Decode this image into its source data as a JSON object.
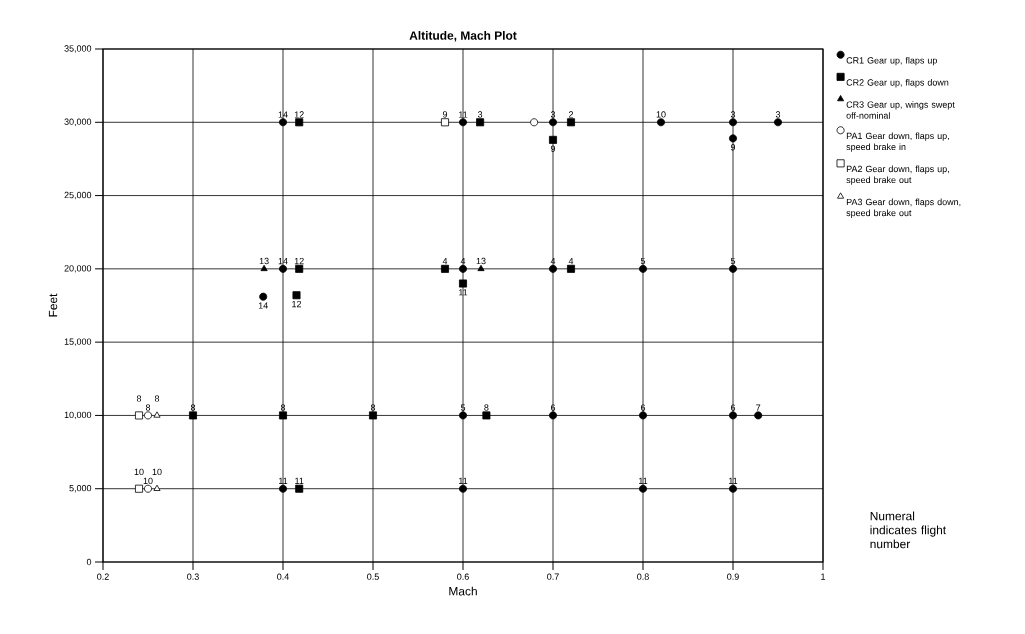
{
  "chart_data": {
    "type": "scatter",
    "title": "Altitude, Mach Plot",
    "xlabel": "Mach",
    "ylabel": "Feet",
    "xlim": [
      0.2,
      1
    ],
    "ylim": [
      0,
      35000
    ],
    "xticks": [
      0.2,
      0.3,
      0.4,
      0.5,
      0.6,
      0.7,
      0.8,
      0.9,
      1
    ],
    "yticks": [
      0,
      {
        "value": 5000,
        "label": "5,000"
      },
      {
        "value": 10000,
        "label": "10,000"
      },
      {
        "value": 15000,
        "label": "15,000"
      },
      {
        "value": 20000,
        "label": "20,000"
      },
      {
        "value": 25000,
        "label": "25,000"
      },
      {
        "value": 30000,
        "label": "30,000"
      },
      {
        "value": 35000,
        "label": "35,000"
      }
    ],
    "grid": true,
    "legend": "right",
    "annotations": [
      "Numeral indicates flight number",
      {
        "text": "14",
        "x": 0.4,
        "y": 30000
      },
      {
        "text": "11",
        "x": 0.6,
        "y": 30000
      },
      {
        "text": "3",
        "x": 0.7,
        "y": 30000
      },
      {
        "text": "10",
        "x": 0.82,
        "y": 30000
      },
      {
        "text": "3",
        "x": 0.9,
        "y": 30000
      },
      {
        "text": "3",
        "x": 0.95,
        "y": 30000
      },
      {
        "text": "9",
        "x": 0.9,
        "y": 28900
      },
      {
        "text": "14",
        "x": 0.4,
        "y": 20000
      },
      {
        "text": "4",
        "x": 0.6,
        "y": 20000
      },
      {
        "text": "4",
        "x": 0.7,
        "y": 20000
      },
      {
        "text": "5",
        "x": 0.8,
        "y": 20000
      },
      {
        "text": "5",
        "x": 0.9,
        "y": 20000
      },
      {
        "text": "14",
        "x": 0.378,
        "y": 18100
      },
      {
        "text": "5",
        "x": 0.6,
        "y": 10000
      },
      {
        "text": "6",
        "x": 0.7,
        "y": 10000
      },
      {
        "text": "6",
        "x": 0.8,
        "y": 10000
      },
      {
        "text": "6",
        "x": 0.9,
        "y": 10000
      },
      {
        "text": "7",
        "x": 0.928,
        "y": 10000
      },
      {
        "text": "11",
        "x": 0.4,
        "y": 5000
      },
      {
        "text": "11",
        "x": 0.6,
        "y": 5000
      },
      {
        "text": "11",
        "x": 0.8,
        "y": 5000
      },
      {
        "text": "11",
        "x": 0.9,
        "y": 5000
      },
      {
        "text": "12",
        "x": 0.418,
        "y": 30000
      },
      {
        "text": "3",
        "x": 0.619,
        "y": 30000
      },
      {
        "text": "2",
        "x": 0.72,
        "y": 30000
      },
      {
        "text": "9",
        "x": 0.7,
        "y": 28800
      },
      {
        "text": "12",
        "x": 0.418,
        "y": 20000
      },
      {
        "text": "4",
        "x": 0.58,
        "y": 20000
      },
      {
        "text": "4",
        "x": 0.72,
        "y": 20000
      },
      {
        "text": "12",
        "x": 0.415,
        "y": 18200
      },
      {
        "text": "11",
        "x": 0.6,
        "y": 19000
      },
      {
        "text": "8",
        "x": 0.3,
        "y": 10000
      },
      {
        "text": "8",
        "x": 0.4,
        "y": 10000
      },
      {
        "text": "8",
        "x": 0.5,
        "y": 10000
      },
      {
        "text": "8",
        "x": 0.626,
        "y": 10000
      },
      {
        "text": "11",
        "x": 0.418,
        "y": 5000
      },
      {
        "text": "13",
        "x": 0.379,
        "y": 20000
      },
      {
        "text": "13",
        "x": 0.62,
        "y": 20000
      },
      {
        "text": "8",
        "x": 0.25,
        "y": 10000
      },
      {
        "text": "10",
        "x": 0.25,
        "y": 5000
      },
      {
        "text": "9",
        "x": 0.58,
        "y": 30000
      },
      {
        "text": "8",
        "x": 0.24,
        "y": 10000
      },
      {
        "text": "10",
        "x": 0.24,
        "y": 5000
      },
      {
        "text": "8",
        "x": 0.26,
        "y": 10000
      },
      {
        "text": "10",
        "x": 0.26,
        "y": 5000
      }
    ],
    "series": [
      {
        "name": "CR1 Gear up, flaps up",
        "color": "#000000",
        "marker": "circle",
        "x": [
          0.4,
          0.6,
          0.7,
          0.82,
          0.9,
          0.95,
          0.9,
          0.4,
          0.6,
          0.7,
          0.8,
          0.9,
          0.378,
          0.6,
          0.7,
          0.8,
          0.9,
          0.928,
          0.4,
          0.6,
          0.8,
          0.9
        ],
        "values": [
          30000,
          30000,
          30000,
          30000,
          30000,
          30000,
          28900,
          20000,
          20000,
          20000,
          20000,
          20000,
          18100,
          10000,
          10000,
          10000,
          10000,
          10000,
          5000,
          5000,
          5000,
          5000
        ]
      },
      {
        "name": "CR2 Gear up, flaps down",
        "color": "#000000",
        "marker": "square",
        "x": [
          0.418,
          0.619,
          0.72,
          0.7,
          0.418,
          0.58,
          0.72,
          0.415,
          0.6,
          0.3,
          0.4,
          0.5,
          0.626,
          0.418
        ],
        "values": [
          30000,
          30000,
          30000,
          28800,
          20000,
          20000,
          20000,
          18200,
          19000,
          10000,
          10000,
          10000,
          10000,
          5000
        ]
      },
      {
        "name": "CR3 Gear up, wings swept off-nominal",
        "color": "#000000",
        "marker": "triangle",
        "x": [
          0.379,
          0.62
        ],
        "values": [
          20000,
          20000
        ]
      },
      {
        "name": "PA1 Gear down, flaps up, speed brake in",
        "color": "#ffffff",
        "marker": "circle",
        "x": [
          0.679,
          0.25,
          0.25
        ],
        "values": [
          30000,
          10000,
          5000
        ]
      },
      {
        "name": "PA2 Gear down, flaps up, speed brake out",
        "color": "#ffffff",
        "marker": "square",
        "x": [
          0.58,
          0.24,
          0.24
        ],
        "values": [
          30000,
          10000,
          5000
        ]
      },
      {
        "name": "PA3 Gear down, flaps down, speed brake out",
        "color": "#ffffff",
        "marker": "triangle",
        "x": [
          0.26,
          0.26
        ],
        "values": [
          10000,
          5000
        ]
      }
    ]
  }
}
